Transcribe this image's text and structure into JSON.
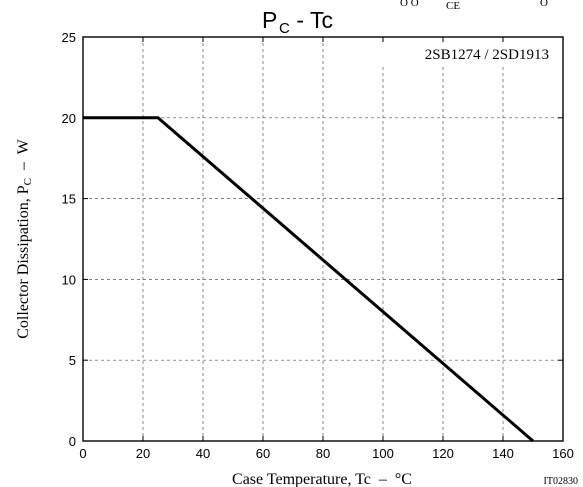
{
  "chart_data": {
    "type": "line",
    "title_main": "P",
    "title_sub": "C",
    "title_rest": " - Tc",
    "top_clip_left": "O  O",
    "top_clip_sub": "CE",
    "top_clip_right": "O",
    "device_label": "2SB1274 / 2SD1913",
    "xlabel": "Case Temperature, Tc  –  °C",
    "ylabel_main": "Collector Dissipation, P",
    "ylabel_sub": "C",
    "ylabel_rest": "  –  W",
    "figure_code": "IT02830",
    "xlim": [
      0,
      160
    ],
    "ylim": [
      0,
      25
    ],
    "xticks": [
      0,
      20,
      40,
      60,
      80,
      100,
      120,
      140,
      160
    ],
    "yticks": [
      0,
      5,
      10,
      15,
      20,
      25
    ],
    "grid": true,
    "series": [
      {
        "x": [
          0,
          25,
          150
        ],
        "y": [
          20,
          20,
          0
        ]
      }
    ]
  }
}
